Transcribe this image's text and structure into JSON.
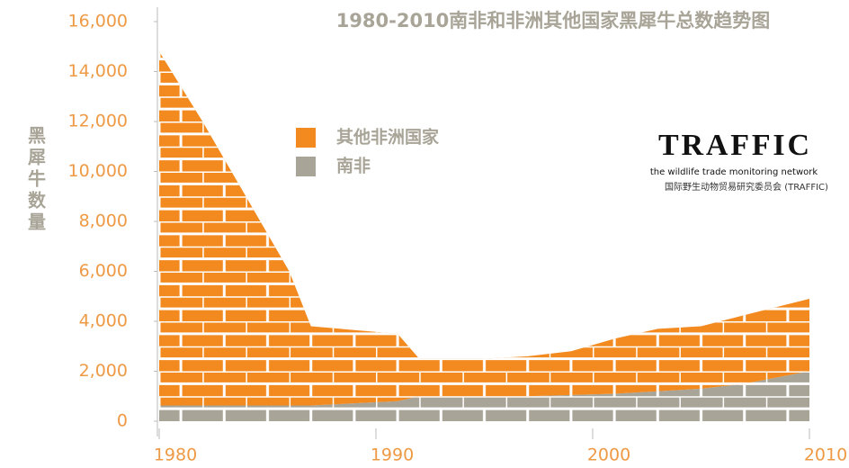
{
  "chart_data": {
    "type": "stacked_area",
    "title": "1980-2010南非和非洲其他国家黑犀牛总数趋势图",
    "ylabel": "黑犀牛数量",
    "x": [
      1980,
      1982,
      1984,
      1986,
      1987,
      1991,
      1992,
      1995,
      1997,
      1999,
      2001,
      2003,
      2005,
      2007,
      2010
    ],
    "series": [
      {
        "name": "其他非洲国家",
        "color": "#f28a1f",
        "values": [
          14170,
          11370,
          8370,
          5370,
          3170,
          2700,
          1500,
          1500,
          1600,
          1750,
          2200,
          2500,
          2500,
          2750,
          2900
        ]
      },
      {
        "name": "南非",
        "color": "#a8a497",
        "values": [
          630,
          630,
          630,
          630,
          630,
          800,
          1000,
          1000,
          1000,
          1050,
          1100,
          1200,
          1300,
          1500,
          2000
        ]
      }
    ],
    "xlim": [
      1980,
      2010
    ],
    "xticks": [
      1980,
      1990,
      2000,
      2010
    ],
    "ylim": [
      0,
      16000
    ],
    "yticks": [
      0,
      {
        "value": 2000,
        "label": "2,000"
      },
      {
        "value": 4000,
        "label": "4,000"
      },
      {
        "value": 6000,
        "label": "6,000"
      },
      {
        "value": 8000,
        "label": "8,000"
      },
      {
        "value": 10000,
        "label": "10,000"
      },
      {
        "value": 12000,
        "label": "12,000"
      },
      {
        "value": 14000,
        "label": "14,000"
      },
      {
        "value": 16000,
        "label": "16,000"
      }
    ],
    "legend": "upper left"
  },
  "logo": {
    "name": "TRAFFIC",
    "tagline": "the wildlife trade monitoring network",
    "org": "国际野生动物贸易研究委员会 (TRAFFIC)"
  }
}
